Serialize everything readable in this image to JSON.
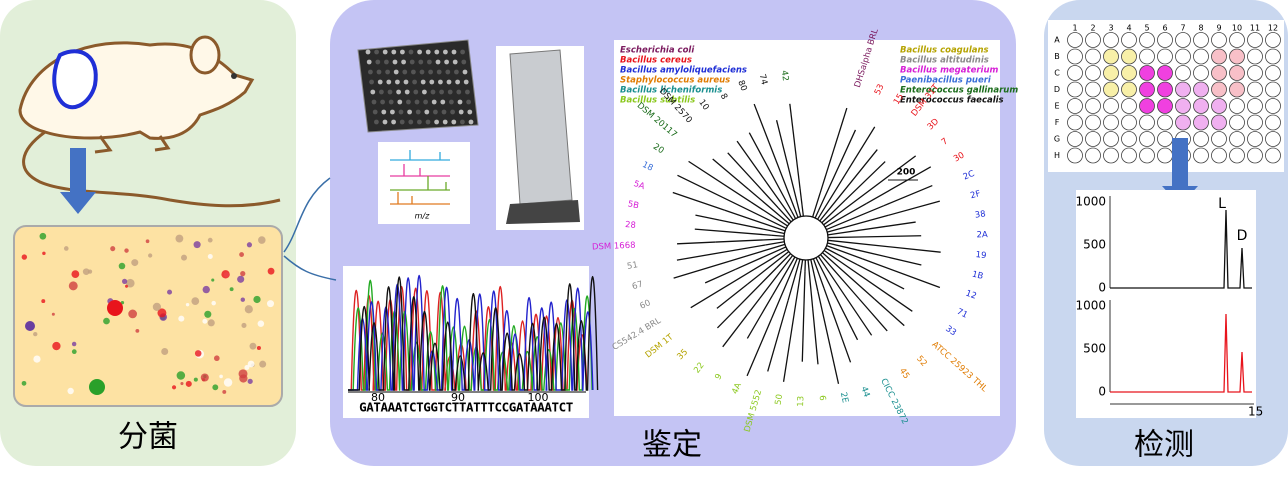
{
  "panels": {
    "isolation": {
      "label": "分菌"
    },
    "identification": {
      "label": "鉴定",
      "mz_label": "m/z",
      "sequence": "GATAAATCTGGTCTTATTTCCGATAAATCT",
      "sequence_ticks": [
        "80",
        "90",
        "100"
      ],
      "tree_scale": "200",
      "legend": [
        {
          "name": "Escherichia coli",
          "color": "#7b1a5e"
        },
        {
          "name": "Bacillus cereus",
          "color": "#e8141c"
        },
        {
          "name": "Bacillus amyloliquefaciens",
          "color": "#1f2fd6"
        },
        {
          "name": "Staphylococcus aureus",
          "color": "#e07b00"
        },
        {
          "name": "Bacillus licheniformis",
          "color": "#1a8f8f"
        },
        {
          "name": "Bacillus subtilis",
          "color": "#8bc81e"
        },
        {
          "name": "Bacillus coagulans",
          "color": "#b5a300"
        },
        {
          "name": "Bacillus altitudinis",
          "color": "#8a8a8a"
        },
        {
          "name": "Bacillus megaterium",
          "color": "#d61ed6"
        },
        {
          "name": "Paenibacillus pueri",
          "color": "#3a6fd8"
        },
        {
          "name": "Enterococcus gallinarum",
          "color": "#1a6b1a"
        },
        {
          "name": "Enterococcus faecalis",
          "color": "#111111"
        }
      ],
      "tree_labels": [
        {
          "text": "42",
          "color": "#1a6b1a"
        },
        {
          "text": "74",
          "color": "#111111"
        },
        {
          "text": "80",
          "color": "#111111"
        },
        {
          "text": "8",
          "color": "#111111"
        },
        {
          "text": "10",
          "color": "#111111"
        },
        {
          "text": "DSM 2570",
          "color": "#111111"
        },
        {
          "text": "DSM 20117",
          "color": "#1a6b1a"
        },
        {
          "text": "20",
          "color": "#1a6b1a"
        },
        {
          "text": "18",
          "color": "#3a6fd8"
        },
        {
          "text": "5A",
          "color": "#d61ed6"
        },
        {
          "text": "5B",
          "color": "#d61ed6"
        },
        {
          "text": "28",
          "color": "#d61ed6"
        },
        {
          "text": "DSM 1668",
          "color": "#d61ed6"
        },
        {
          "text": "51",
          "color": "#8a8a8a"
        },
        {
          "text": "67",
          "color": "#8a8a8a"
        },
        {
          "text": "60",
          "color": "#8a8a8a"
        },
        {
          "text": "CS542.4 BRL",
          "color": "#8a8a8a"
        },
        {
          "text": "DSM 1T",
          "color": "#b5a300"
        },
        {
          "text": "35",
          "color": "#b5a300"
        },
        {
          "text": "22",
          "color": "#8bc81e"
        },
        {
          "text": "9",
          "color": "#8bc81e"
        },
        {
          "text": "4A",
          "color": "#8bc81e"
        },
        {
          "text": "DSM 5552",
          "color": "#8bc81e"
        },
        {
          "text": "50",
          "color": "#8bc81e"
        },
        {
          "text": "13",
          "color": "#8bc81e"
        },
        {
          "text": "6",
          "color": "#8bc81e"
        },
        {
          "text": "2E",
          "color": "#1a8f8f"
        },
        {
          "text": "44",
          "color": "#1a8f8f"
        },
        {
          "text": "CICC 23872",
          "color": "#1a8f8f"
        },
        {
          "text": "45",
          "color": "#e07b00"
        },
        {
          "text": "52",
          "color": "#e07b00"
        },
        {
          "text": "ATCC 25923 THL",
          "color": "#e07b00"
        },
        {
          "text": "33",
          "color": "#1f2fd6"
        },
        {
          "text": "71",
          "color": "#1f2fd6"
        },
        {
          "text": "12",
          "color": "#1f2fd6"
        },
        {
          "text": "1B",
          "color": "#1f2fd6"
        },
        {
          "text": "19",
          "color": "#1f2fd6"
        },
        {
          "text": "2A",
          "color": "#1f2fd6"
        },
        {
          "text": "38",
          "color": "#1f2fd6"
        },
        {
          "text": "2F",
          "color": "#1f2fd6"
        },
        {
          "text": "2C",
          "color": "#1f2fd6"
        },
        {
          "text": "30",
          "color": "#e8141c"
        },
        {
          "text": "7",
          "color": "#e8141c"
        },
        {
          "text": "3D",
          "color": "#e8141c"
        },
        {
          "text": "DSM 31T",
          "color": "#e8141c"
        },
        {
          "text": "15",
          "color": "#e8141c"
        },
        {
          "text": "53",
          "color": "#e8141c"
        },
        {
          "text": "DHSalpha BRL",
          "color": "#7b1a5e"
        }
      ]
    },
    "detection": {
      "label": "检测",
      "plate_rows": [
        "A",
        "B",
        "C",
        "D",
        "E",
        "F",
        "G",
        "H"
      ],
      "plate_cols": [
        "1",
        "2",
        "3",
        "4",
        "5",
        "6",
        "7",
        "8",
        "9",
        "10",
        "11",
        "12"
      ],
      "chrom_ticks": [
        "1000",
        "500",
        "0"
      ],
      "x_tick": "15",
      "peaks": [
        "L",
        "D"
      ]
    }
  }
}
